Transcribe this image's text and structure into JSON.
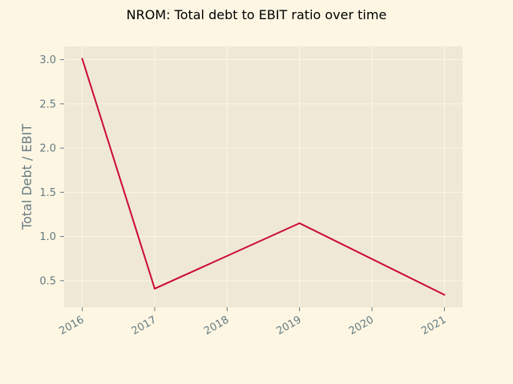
{
  "chart_data": {
    "type": "line",
    "title": "NROM: Total debt to EBIT ratio over time",
    "xlabel": "",
    "ylabel": "Total Debt / EBIT",
    "x": [
      2016,
      2017,
      2018,
      2019,
      2020,
      2021
    ],
    "x_tick_labels": [
      "2016",
      "2017",
      "2018",
      "2019",
      "2020",
      "2021"
    ],
    "y_ticks": [
      0.5,
      1.0,
      1.5,
      2.0,
      2.5,
      3.0
    ],
    "y_tick_labels": [
      "0.5",
      "1.0",
      "1.5",
      "2.0",
      "2.5",
      "3.0"
    ],
    "xlim": [
      2015.75,
      2021.25
    ],
    "ylim": [
      0.2,
      3.15
    ],
    "grid": true,
    "legend": "none",
    "series": [
      {
        "color": "#cc0a33",
        "points": [
          {
            "x": 2016,
            "y": 3.01
          },
          {
            "x": 2017,
            "y": 0.41
          },
          {
            "x": 2019,
            "y": 1.15
          },
          {
            "x": 2021,
            "y": 0.34
          }
        ]
      }
    ],
    "colors": {
      "page_background": "#fdf6e3",
      "plot_background": "#eee8d5",
      "grid": "#fdf6e3",
      "tick_text": "#657b83"
    }
  }
}
